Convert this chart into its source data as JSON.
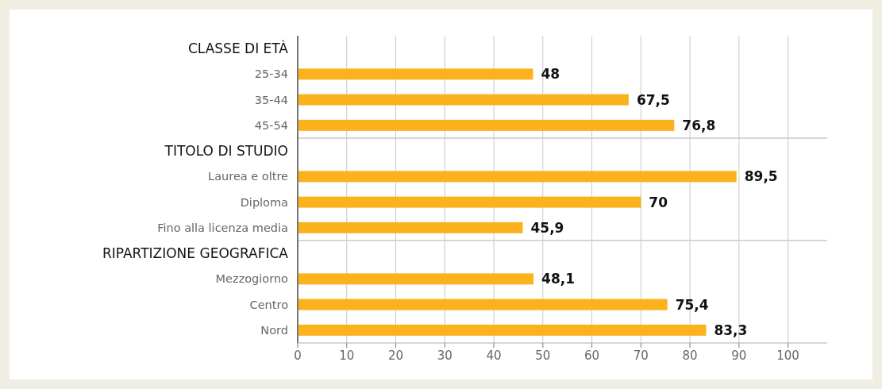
{
  "chart_data": {
    "type": "bar",
    "orientation": "horizontal",
    "categories": [
      "CLASSE DI ETÀ",
      "25-34",
      "35-44",
      "45-54",
      "TITOLO DI STUDIO",
      "Laurea e oltre",
      "Diploma",
      "Fino alla licenza media",
      "RIPARTIZIONE GEOGRAFICA",
      "Mezzogiorno",
      "Centro",
      "Nord"
    ],
    "values": [
      null,
      48,
      67.5,
      76.8,
      null,
      89.5,
      70,
      45.9,
      null,
      48.1,
      75.4,
      83.3
    ],
    "value_labels": [
      null,
      "48",
      "67,5",
      "76,8",
      null,
      "89,5",
      "70",
      "45,9",
      null,
      "48,1",
      "75,4",
      "83,3"
    ],
    "color": "#fbb21d",
    "xlim": [
      0,
      108
    ],
    "xticks": [
      0,
      10,
      20,
      30,
      40,
      50,
      60,
      70,
      80,
      90,
      100
    ],
    "grid": "x"
  }
}
